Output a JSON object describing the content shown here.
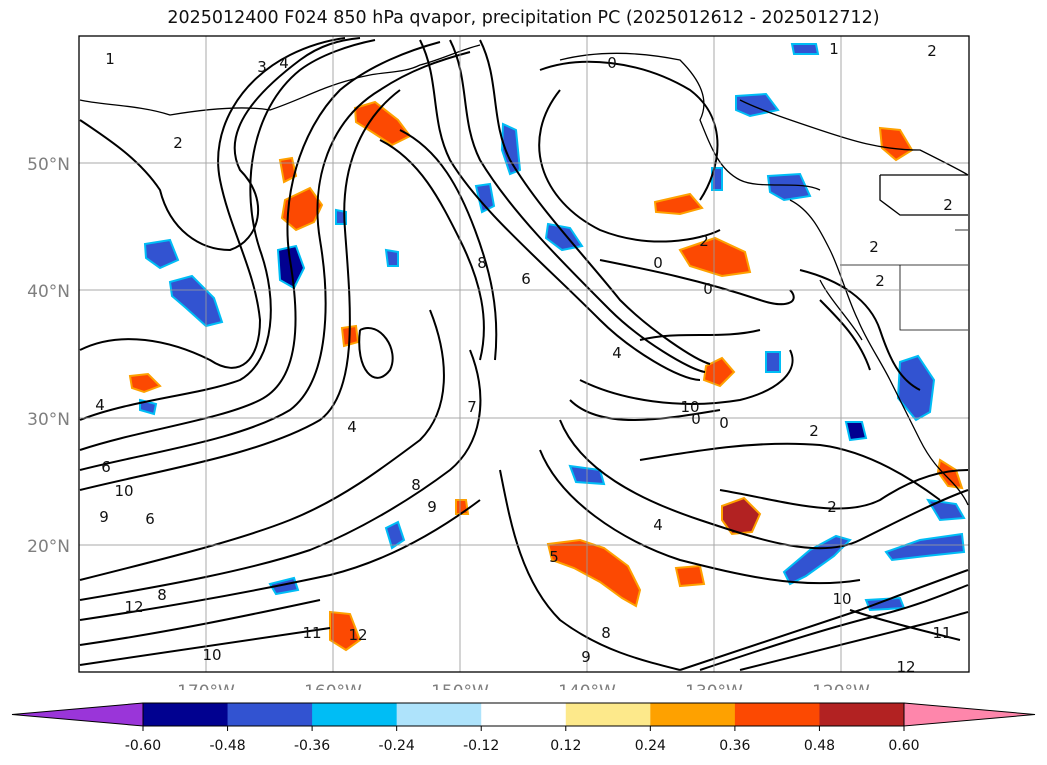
{
  "title": "2025012400 F024 850 hPa qvapor, precipitation PC (2025012612 - 2025012712)",
  "map": {
    "lat_labels": [
      "50°N",
      "40°N",
      "30°N",
      "20°N"
    ],
    "lon_labels": [
      "170°W",
      "160°W",
      "150°W",
      "140°W",
      "130°W",
      "120°W"
    ],
    "contour_labels": [
      "1",
      "3",
      "4",
      "2",
      "0",
      "1",
      "2",
      "2",
      "2",
      "2",
      "0",
      "0",
      "6",
      "8",
      "4",
      "6",
      "10",
      "9",
      "6",
      "8",
      "12",
      "10",
      "11",
      "12",
      "4",
      "9",
      "8",
      "7",
      "5",
      "4",
      "2",
      "0",
      "10",
      "2",
      "11",
      "12",
      "9",
      "8",
      "0",
      "4",
      "10",
      "2"
    ]
  },
  "colorbar": {
    "ticks": [
      "-0.60",
      "-0.48",
      "-0.36",
      "-0.24",
      "-0.12",
      "0.12",
      "0.24",
      "0.36",
      "0.48",
      "0.60"
    ],
    "colors": [
      "#9a35d9",
      "#010190",
      "#3253d1",
      "#00bdf5",
      "#aee3fb",
      "#ffffff",
      "#fde98b",
      "#fea100",
      "#fc4902",
      "#b22222",
      "#fe86ab"
    ]
  }
}
